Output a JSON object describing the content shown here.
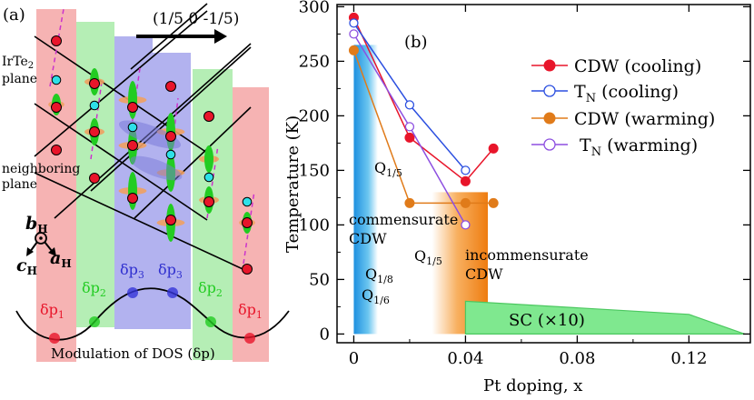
{
  "panel_a": {
    "label": "(a)",
    "direction_label": "(1/5 0 -1/5)",
    "plane_label_1": "IrTe",
    "plane_label_1_sub": "2",
    "plane_label_2": "plane",
    "neighbor_label_1": "neighboring",
    "neighbor_label_2": "plane",
    "axis_b": "b",
    "axis_a": "a",
    "axis_c": "c",
    "axis_sub": "H",
    "stripes": [
      {
        "label": "δp",
        "sub": "1",
        "color": "#f4a7a7"
      },
      {
        "label": "δp",
        "sub": "2",
        "color": "#a8ecab"
      },
      {
        "label": "δp",
        "sub": "3",
        "color": "#a5a5ee"
      },
      {
        "label": "δp",
        "sub": "3",
        "color": "#a5a5ee"
      },
      {
        "label": "δp",
        "sub": "2",
        "color": "#a8ecab"
      },
      {
        "label": "δp",
        "sub": "1",
        "color": "#f4a7a7"
      }
    ],
    "dos_caption": "Modulation of DOS (δp)",
    "colors": {
      "ir": "#e8152a",
      "te": "#2ee0e8",
      "orbital_green": "#22cc22",
      "orbital_orange": "#f0a060",
      "dashed": "#cc33cc"
    }
  },
  "chart_data": {
    "type": "line",
    "panel_label": "(b)",
    "xlabel": "Pt doping, x",
    "ylabel": "Temperature (K)",
    "xlim": [
      -0.006,
      0.142
    ],
    "ylim": [
      -8,
      302
    ],
    "xticks": [
      0,
      0.04,
      0.08,
      0.12
    ],
    "xtick_labels": [
      "0",
      "0.04",
      "0.08",
      "0.12"
    ],
    "yticks": [
      0,
      50,
      100,
      150,
      200,
      250,
      300
    ],
    "ytick_labels": [
      "0",
      "50",
      "100",
      "150",
      "200",
      "250",
      "300"
    ],
    "series": [
      {
        "name": "CDW (cooling)",
        "color": "#e8152a",
        "marker": "filled",
        "x": [
          0,
          0.02,
          0.04,
          0.05
        ],
        "y": [
          290,
          180,
          140,
          170
        ]
      },
      {
        "name": "T",
        "name_sub": "N",
        "name_rest": " (cooling)",
        "color": "#2b4fe0",
        "marker": "open",
        "x": [
          0,
          0.02,
          0.04
        ],
        "y": [
          285,
          210,
          150
        ]
      },
      {
        "name": "CDW (warming)",
        "color": "#e07b1a",
        "marker": "filled",
        "x": [
          0,
          0.02,
          0.04,
          0.05
        ],
        "y": [
          260,
          120,
          120,
          120
        ]
      },
      {
        "name": " T",
        "name_sub": "N",
        "name_rest": " (warming)",
        "color": "#8d4fe0",
        "marker": "open",
        "x": [
          0,
          0.02,
          0.04
        ],
        "y": [
          275,
          190,
          100
        ]
      }
    ],
    "regions": [
      {
        "name": "commensurate",
        "color": "#2a9fe0",
        "x0": 0,
        "x1": 0.006,
        "y0": 0,
        "y1": 265
      },
      {
        "name": "incommensurate",
        "color": "#f0851a",
        "x0": 0.028,
        "x1": 0.048,
        "y0": 0,
        "y1": 130
      },
      {
        "name": "sc",
        "color": "#7fe88f",
        "x": [
          0.04,
          0.04,
          0.12,
          0.14
        ],
        "y": [
          0,
          30,
          18,
          0
        ]
      }
    ],
    "annotations": {
      "q15_a": "Q",
      "q15_a_sub": "1/5",
      "comm_1": "commensurate",
      "comm_2": "CDW",
      "q18": "Q",
      "q18_sub": "1/8",
      "q16": "Q",
      "q16_sub": "1/6",
      "q15_b": "Q",
      "q15_b_sub": "1/5",
      "incomm_1": "incommensurate",
      "incomm_2": "CDW",
      "sc": "SC (×10)"
    }
  }
}
